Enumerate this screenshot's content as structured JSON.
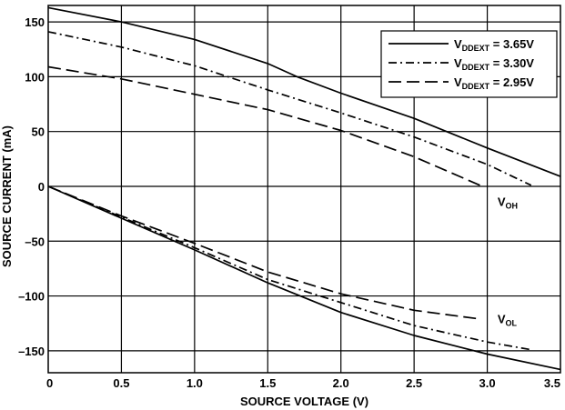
{
  "chart_data": {
    "type": "line",
    "xlabel": "SOURCE VOLTAGE (V)",
    "ylabel": "SOURCE CURRENT (mA)",
    "xlim": [
      0,
      3.5
    ],
    "ylim": [
      -170,
      165
    ],
    "xticks": [
      0,
      0.5,
      1.0,
      1.5,
      2.0,
      2.5,
      3.0,
      3.5
    ],
    "xtick_labels": [
      "0",
      "0.5",
      "1.0",
      "1.5",
      "2.0",
      "2.5",
      "3.0",
      "3.5"
    ],
    "yticks": [
      -150,
      -100,
      -50,
      0,
      50,
      100,
      150
    ],
    "ytick_labels": [
      "–150",
      "–100",
      "–50",
      "0",
      "50",
      "100",
      "150"
    ],
    "grid": true,
    "legend_position": "top-right",
    "legend": [
      {
        "main": "V",
        "sub": "DDEXT",
        "tail": " = 3.65V",
        "dash": "solid"
      },
      {
        "main": "V",
        "sub": "DDEXT",
        "tail": " = 3.30V",
        "dash": "dashdot"
      },
      {
        "main": "V",
        "sub": "DDEXT",
        "tail": " = 2.95V",
        "dash": "dashed"
      }
    ],
    "annotations": [
      {
        "main": "V",
        "sub": "OH",
        "x": 3.07,
        "y": -18
      },
      {
        "main": "V",
        "sub": "OL",
        "x": 3.07,
        "y": -125
      }
    ],
    "series": [
      {
        "legend_index": 0,
        "dash": "solid",
        "x": [
          0,
          0.5,
          1.0,
          1.5,
          1.7,
          2.0,
          2.5,
          3.0,
          3.5
        ],
        "y": [
          163,
          150,
          134,
          112,
          100,
          85,
          62,
          35,
          9
        ]
      },
      {
        "legend_index": 1,
        "dash": "dashdot",
        "x": [
          0,
          0.5,
          1.0,
          1.5,
          2.0,
          2.5,
          3.0,
          3.3
        ],
        "y": [
          141,
          127,
          110,
          88,
          67,
          45,
          20,
          1
        ]
      },
      {
        "legend_index": 2,
        "dash": "dashed",
        "x": [
          0,
          0.5,
          1.0,
          1.5,
          2.0,
          2.5,
          2.95
        ],
        "y": [
          109,
          98,
          84,
          70,
          51,
          27,
          1
        ]
      },
      {
        "legend_index": 0,
        "dash": "solid",
        "x": [
          0,
          0.5,
          1.0,
          1.5,
          2.0,
          2.5,
          3.0,
          3.5
        ],
        "y": [
          0,
          -29,
          -58,
          -88,
          -115,
          -136,
          -153,
          -167
        ]
      },
      {
        "legend_index": 1,
        "dash": "dashdot",
        "x": [
          0,
          0.5,
          1.0,
          1.5,
          2.0,
          2.5,
          3.0,
          3.3
        ],
        "y": [
          0,
          -28,
          -56,
          -85,
          -106,
          -127,
          -142,
          -149
        ]
      },
      {
        "legend_index": 2,
        "dash": "dashed",
        "x": [
          0,
          0.5,
          1.0,
          1.5,
          2.0,
          2.5,
          2.95
        ],
        "y": [
          0,
          -27,
          -52,
          -78,
          -98,
          -113,
          -121
        ]
      }
    ]
  }
}
